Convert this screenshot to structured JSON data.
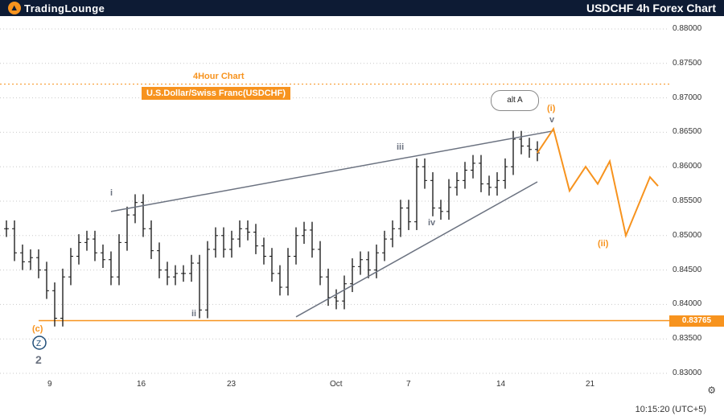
{
  "header": {
    "logo_text": "TradingLounge",
    "title": "USDCHF 4h Forex Chart"
  },
  "annotations": {
    "timeframe": "4Hour Chart",
    "pair": "U.S.Dollar/Swiss Franc(USDCHF)",
    "callout": "alt A"
  },
  "footer": {
    "time": "10:15:20 (UTC+5)",
    "settings_icon": "gear-icon"
  },
  "chart_data": {
    "type": "line",
    "title": "",
    "price_axis": [
      "0.88000",
      "0.87500",
      "0.87000",
      "0.86500",
      "0.86000",
      "0.85500",
      "0.85000",
      "0.84500",
      "0.84000",
      "0.83500",
      "0.83000"
    ],
    "x_ticks": [
      "9",
      "16",
      "23",
      "Oct",
      "7",
      "14",
      "21"
    ],
    "current_price": "0.83765",
    "wave_labels": [
      "(c)",
      "2",
      "i",
      "ii",
      "iii",
      "iv",
      "v",
      "(i)",
      "(ii)"
    ],
    "price_series": [
      [
        0,
        0.851
      ],
      [
        1,
        0.8475
      ],
      [
        2,
        0.8462
      ],
      [
        3,
        0.8468
      ],
      [
        4,
        0.845
      ],
      [
        5,
        0.842
      ],
      [
        6,
        0.838
      ],
      [
        7,
        0.844
      ],
      [
        8,
        0.847
      ],
      [
        9,
        0.849
      ],
      [
        10,
        0.8495
      ],
      [
        11,
        0.8475
      ],
      [
        12,
        0.8465
      ],
      [
        13,
        0.844
      ],
      [
        14,
        0.849
      ],
      [
        15,
        0.853
      ],
      [
        16,
        0.8548
      ],
      [
        17,
        0.851
      ],
      [
        18,
        0.8478
      ],
      [
        19,
        0.845
      ],
      [
        20,
        0.844
      ],
      [
        21,
        0.8445
      ],
      [
        22,
        0.8445
      ],
      [
        23,
        0.846
      ],
      [
        24,
        0.8392
      ],
      [
        25,
        0.848
      ],
      [
        26,
        0.85
      ],
      [
        27,
        0.848
      ],
      [
        28,
        0.8495
      ],
      [
        29,
        0.851
      ],
      [
        30,
        0.8505
      ],
      [
        31,
        0.8485
      ],
      [
        32,
        0.847
      ],
      [
        33,
        0.8445
      ],
      [
        34,
        0.8425
      ],
      [
        35,
        0.847
      ],
      [
        36,
        0.85
      ],
      [
        37,
        0.8508
      ],
      [
        38,
        0.848
      ],
      [
        39,
        0.844
      ],
      [
        40,
        0.841
      ],
      [
        41,
        0.8405
      ],
      [
        42,
        0.843
      ],
      [
        43,
        0.8455
      ],
      [
        44,
        0.8465
      ],
      [
        45,
        0.845
      ],
      [
        46,
        0.8475
      ],
      [
        47,
        0.8495
      ],
      [
        48,
        0.851
      ],
      [
        49,
        0.854
      ],
      [
        50,
        0.852
      ],
      [
        51,
        0.86
      ],
      [
        52,
        0.858
      ],
      [
        53,
        0.854
      ],
      [
        54,
        0.8535
      ],
      [
        55,
        0.857
      ],
      [
        56,
        0.858
      ],
      [
        57,
        0.8595
      ],
      [
        58,
        0.8605
      ],
      [
        59,
        0.8575
      ],
      [
        60,
        0.857
      ],
      [
        61,
        0.858
      ],
      [
        62,
        0.86
      ],
      [
        63,
        0.864
      ],
      [
        64,
        0.863
      ],
      [
        65,
        0.8625
      ],
      [
        66,
        0.862
      ]
    ],
    "projection": [
      [
        66,
        0.862
      ],
      [
        68,
        0.8655
      ],
      [
        70,
        0.8565
      ],
      [
        72,
        0.86
      ],
      [
        73.5,
        0.8575
      ],
      [
        75,
        0.8608
      ],
      [
        77,
        0.85
      ],
      [
        80,
        0.8585
      ],
      [
        81,
        0.8572
      ]
    ],
    "trend_lines": [
      {
        "from": [
          13,
          0.8535
        ],
        "to": [
          68,
          0.8652
        ]
      },
      {
        "from": [
          36,
          0.8382
        ],
        "to": [
          66,
          0.8578
        ]
      }
    ],
    "support_level": 0.83765,
    "resistance_level": 0.872,
    "grid": true
  }
}
